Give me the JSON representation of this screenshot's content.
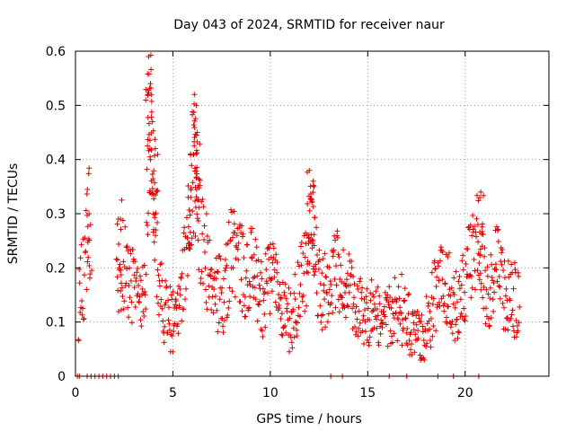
{
  "chart_data": {
    "type": "scatter",
    "title": "Day 043 of 2024, SRMTID for receiver naur",
    "xlabel": "GPS time / hours",
    "ylabel": "SRMTID / TECUs",
    "xlim": [
      0,
      24.3
    ],
    "ylim": [
      0,
      0.6
    ],
    "xticks": [
      0,
      5,
      10,
      15,
      20
    ],
    "xtick_labels": [
      "0",
      "5",
      "10",
      "15",
      "20"
    ],
    "yticks": [
      0,
      0.1,
      0.2,
      0.3,
      0.4,
      0.5,
      0.6
    ],
    "ytick_labels": [
      "0",
      "0.1",
      "0.2",
      "0.3",
      "0.4",
      "0.5",
      "0.6"
    ],
    "grid": true,
    "marker": "+",
    "color": "#e00000",
    "series": [
      {
        "name": "SRMTID",
        "trend": [
          [
            0.15,
            0.12
          ],
          [
            0.3,
            0.17
          ],
          [
            0.45,
            0.19
          ],
          [
            0.6,
            0.26
          ],
          [
            0.7,
            0.28
          ],
          [
            2.2,
            0.28
          ],
          [
            2.35,
            0.24
          ],
          [
            2.5,
            0.2
          ],
          [
            2.8,
            0.17
          ],
          [
            3.1,
            0.16
          ],
          [
            3.4,
            0.14
          ],
          [
            3.6,
            0.2
          ],
          [
            3.75,
            0.45
          ],
          [
            3.85,
            0.5
          ],
          [
            4.0,
            0.35
          ],
          [
            4.15,
            0.25
          ],
          [
            4.3,
            0.16
          ],
          [
            4.6,
            0.12
          ],
          [
            5.0,
            0.1
          ],
          [
            5.3,
            0.11
          ],
          [
            5.6,
            0.2
          ],
          [
            5.8,
            0.3
          ],
          [
            6.0,
            0.28
          ],
          [
            6.2,
            0.38
          ],
          [
            6.3,
            0.26
          ],
          [
            6.6,
            0.27
          ],
          [
            6.8,
            0.18
          ],
          [
            7.2,
            0.16
          ],
          [
            7.6,
            0.14
          ],
          [
            8.0,
            0.24
          ],
          [
            8.4,
            0.2
          ],
          [
            8.8,
            0.19
          ],
          [
            9.2,
            0.2
          ],
          [
            9.6,
            0.14
          ],
          [
            10.0,
            0.18
          ],
          [
            10.3,
            0.18
          ],
          [
            10.6,
            0.12
          ],
          [
            11.0,
            0.1
          ],
          [
            11.4,
            0.14
          ],
          [
            11.8,
            0.2
          ],
          [
            12.0,
            0.26
          ],
          [
            12.3,
            0.21
          ],
          [
            12.6,
            0.14
          ],
          [
            13.0,
            0.17
          ],
          [
            13.4,
            0.2
          ],
          [
            13.8,
            0.16
          ],
          [
            14.2,
            0.15
          ],
          [
            14.6,
            0.12
          ],
          [
            15.0,
            0.12
          ],
          [
            15.4,
            0.11
          ],
          [
            15.8,
            0.1
          ],
          [
            16.2,
            0.12
          ],
          [
            16.6,
            0.13
          ],
          [
            17.0,
            0.11
          ],
          [
            17.4,
            0.07
          ],
          [
            17.8,
            0.07
          ],
          [
            18.2,
            0.11
          ],
          [
            18.6,
            0.17
          ],
          [
            19.0,
            0.18
          ],
          [
            19.4,
            0.13
          ],
          [
            19.8,
            0.14
          ],
          [
            20.2,
            0.2
          ],
          [
            20.6,
            0.26
          ],
          [
            20.9,
            0.2
          ],
          [
            21.2,
            0.15
          ],
          [
            21.6,
            0.2
          ],
          [
            22.0,
            0.15
          ],
          [
            22.4,
            0.14
          ],
          [
            22.8,
            0.14
          ]
        ],
        "peaks": [
          [
            3.75,
            0.59
          ],
          [
            3.85,
            0.54
          ],
          [
            3.95,
            0.47
          ],
          [
            4.1,
            0.42
          ],
          [
            6.1,
            0.52
          ],
          [
            6.2,
            0.5
          ],
          [
            5.9,
            0.41
          ],
          [
            6.25,
            0.45
          ],
          [
            12.0,
            0.38
          ],
          [
            12.2,
            0.36
          ],
          [
            20.8,
            0.34
          ],
          [
            0.7,
            0.3
          ],
          [
            2.2,
            0.29
          ]
        ],
        "zeros": [
          [
            0.1,
            0.0
          ],
          [
            0.2,
            0.0
          ],
          [
            0.6,
            0.0
          ],
          [
            0.8,
            0.0
          ],
          [
            1.0,
            0.0
          ],
          [
            1.2,
            0.0
          ],
          [
            1.4,
            0.0
          ],
          [
            1.6,
            0.0
          ],
          [
            1.8,
            0.0
          ],
          [
            2.0,
            0.0
          ],
          [
            2.2,
            0.0
          ],
          [
            13.1,
            0.0
          ],
          [
            13.7,
            0.0
          ],
          [
            16.1,
            0.0
          ],
          [
            17.0,
            0.0
          ],
          [
            18.6,
            0.0
          ],
          [
            19.4,
            0.0
          ],
          [
            20.7,
            0.0
          ]
        ]
      }
    ]
  }
}
